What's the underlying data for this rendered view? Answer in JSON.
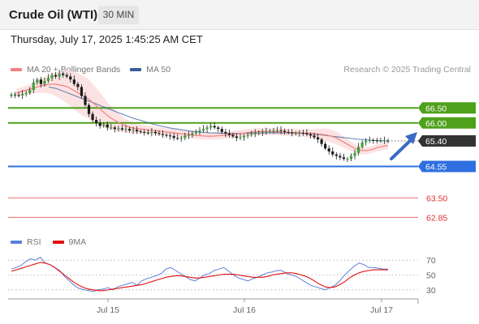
{
  "header": {
    "instrument": "Crude Oil (WTI)",
    "timeframe": "30 MIN"
  },
  "datetime": "Thursday, July 17, 2025 1:45:25 AM CET",
  "legend": {
    "ma20_label": "MA 20 + Bollinger Bands",
    "ma50_label": "MA 50",
    "ma20_color": "#f08080",
    "ma50_color": "#3a5fa0"
  },
  "copyright": "Research © 2025 Trading Central",
  "rsi_legend": {
    "rsi_label": "RSI",
    "ma_label": "9MA",
    "rsi_color": "#5b7fd8",
    "ma_color": "#e01010"
  },
  "chart_data": [
    {
      "type": "candlestick",
      "title": "",
      "ylim": [
        62.4,
        67.4
      ],
      "x_ticks": [
        "Jul 15",
        "Jul 16",
        "Jul 17"
      ],
      "current_price": 65.4,
      "levels": [
        {
          "value": 66.5,
          "label": "66.50",
          "kind": "resistance",
          "color": "#4fa01a"
        },
        {
          "value": 66.0,
          "label": "66.00",
          "kind": "resistance",
          "color": "#4fa01a"
        },
        {
          "value": 64.55,
          "label": "64.55",
          "kind": "pivot",
          "color": "#2f6fe0"
        },
        {
          "value": 63.5,
          "label": "63.50",
          "kind": "support",
          "color": "#e03030"
        },
        {
          "value": 62.85,
          "label": "62.85",
          "kind": "support",
          "color": "#e03030"
        }
      ],
      "close": [
        66.95,
        66.93,
        66.92,
        66.97,
        67.0,
        67.1,
        67.35,
        67.45,
        67.3,
        67.4,
        67.5,
        67.6,
        67.55,
        67.65,
        67.6,
        67.55,
        67.45,
        67.3,
        67.2,
        66.9,
        66.6,
        66.3,
        66.1,
        66.0,
        65.9,
        65.95,
        65.85,
        65.85,
        65.8,
        65.82,
        65.78,
        65.8,
        65.75,
        65.77,
        65.72,
        65.7,
        65.68,
        65.67,
        65.7,
        65.66,
        65.63,
        65.6,
        65.58,
        65.56,
        65.5,
        65.48,
        65.5,
        65.58,
        65.6,
        65.66,
        65.7,
        65.75,
        65.8,
        65.85,
        65.9,
        65.85,
        65.8,
        65.7,
        65.65,
        65.6,
        65.55,
        65.5,
        65.52,
        65.57,
        65.6,
        65.63,
        65.66,
        65.68,
        65.7,
        65.72,
        65.74,
        65.75,
        65.76,
        65.74,
        65.7,
        65.68,
        65.66,
        65.66,
        65.67,
        65.66,
        65.62,
        65.58,
        65.52,
        65.45,
        65.3,
        65.15,
        65.05,
        64.95,
        64.9,
        64.85,
        64.8,
        64.8,
        64.9,
        65.0,
        65.2,
        65.35,
        65.4,
        65.43,
        65.42,
        65.4,
        65.4,
        65.41,
        65.4
      ],
      "ma20": [
        67.0,
        67.05,
        67.1,
        67.15,
        67.2,
        67.25,
        67.28,
        67.3,
        67.28,
        67.25,
        67.2,
        67.1,
        67.0,
        66.9,
        66.8,
        66.65,
        66.5,
        66.35,
        66.2,
        66.1,
        66.0,
        65.92,
        65.86,
        65.82,
        65.8,
        65.78,
        65.76,
        65.74,
        65.72,
        65.7,
        65.68,
        65.66,
        65.64,
        65.62,
        65.6,
        65.58,
        65.57,
        65.56,
        65.56,
        65.57,
        65.58,
        65.6,
        65.62,
        65.64,
        65.66,
        65.68,
        65.7,
        65.71,
        65.72,
        65.72,
        65.71,
        65.7,
        65.69,
        65.68,
        65.68,
        65.67,
        65.66,
        65.65,
        65.64,
        65.62,
        65.6,
        65.56,
        65.5,
        65.4,
        65.3,
        65.2,
        65.12,
        65.08,
        65.08,
        65.12,
        65.18,
        65.22,
        65.25
      ],
      "ma50": [
        67.2,
        67.15,
        67.05,
        66.95,
        66.85,
        66.75,
        66.65,
        66.55,
        66.45,
        66.35,
        66.25,
        66.15,
        66.08,
        66.0,
        65.93,
        65.87,
        65.82,
        65.78,
        65.74,
        65.71,
        65.69,
        65.67,
        65.66,
        65.65,
        65.65,
        65.65,
        65.66,
        65.66,
        65.67,
        65.67,
        65.67,
        65.67,
        65.66,
        65.65,
        65.63,
        65.61,
        65.58,
        65.55,
        65.52,
        65.49,
        65.46,
        65.44,
        65.42,
        65.41,
        65.4
      ],
      "rsi": [
        58,
        60,
        63,
        68,
        72,
        70,
        74,
        66,
        64,
        60,
        56,
        48,
        42,
        36,
        32,
        30,
        29,
        28,
        30,
        31,
        33,
        30,
        34,
        36,
        38,
        40,
        36,
        42,
        45,
        47,
        49,
        52,
        58,
        60,
        56,
        52,
        48,
        44,
        42,
        46,
        50,
        52,
        56,
        58,
        60,
        55,
        50,
        46,
        44,
        42,
        45,
        47,
        50,
        53,
        54,
        56,
        56,
        52,
        50,
        48,
        44,
        40,
        36,
        34,
        32,
        30,
        33,
        36,
        42,
        50,
        56,
        62,
        66,
        64,
        60,
        60,
        59,
        58,
        58
      ],
      "rsi_ma": [
        55,
        57,
        59,
        61,
        63,
        65,
        67,
        66,
        64,
        60,
        55,
        50,
        45,
        40,
        36,
        33,
        31,
        30,
        29,
        29,
        30,
        31,
        32,
        33,
        34,
        35,
        36,
        37,
        39,
        41,
        43,
        45,
        47,
        48,
        49,
        49,
        48,
        47,
        46,
        46,
        47,
        48,
        49,
        50,
        51,
        51,
        51,
        50,
        49,
        48,
        47,
        47,
        47,
        48,
        50,
        51,
        52,
        53,
        53,
        52,
        50,
        48,
        45,
        41,
        37,
        34,
        33,
        34,
        37,
        41,
        46,
        50,
        53,
        55,
        56,
        57,
        57,
        57,
        57
      ],
      "rsi_levels": [
        70,
        50,
        30
      ]
    }
  ]
}
